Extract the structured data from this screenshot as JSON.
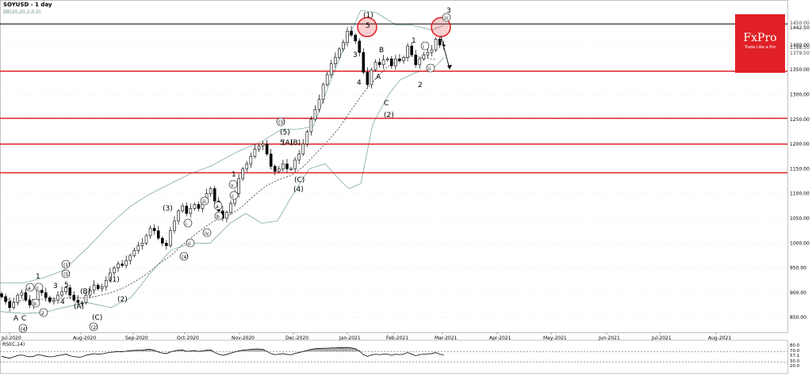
{
  "header": {
    "symbol": "SOYUSD - 1 day",
    "indicator": "BB(20,20,2,0,0)",
    "rsi_label": "RSI(C,14)"
  },
  "brand": {
    "name": "FxPro",
    "tagline": "Trade Like a Pro"
  },
  "colors": {
    "candle": "#000000",
    "resistance": "#e02025",
    "bands": "#7fa8a8",
    "mid": "#333333",
    "grid": "#dddddd"
  },
  "chart_data": [
    {
      "type": "candlestick",
      "ylim": [
        820,
        1478
      ],
      "y_ticks": [
        850,
        900,
        950,
        1000,
        1050,
        1100,
        1150,
        1200,
        1250,
        1300,
        1350,
        1400
      ],
      "y_tick_labels": [
        "850.00",
        "900.00",
        "950.00",
        "1000.00",
        "1050.00",
        "1100.00",
        "1150.00",
        "1200.00",
        "1250.00",
        "1300.00",
        "1350.00",
        "1400.00"
      ],
      "extra_price_labels": [
        "1450.00",
        "1442.50",
        "1398.50",
        "1379.50"
      ],
      "x_labels": [
        "Jul-2020",
        "Aug-2020",
        "Sep-2020",
        "Oct-2020",
        "Nov-2020",
        "Dec-2020",
        "Jan-2021",
        "Feb-2021",
        "Mar-2021",
        "Apr-2021",
        "May-2021",
        "Jun-2021",
        "Jul-2021",
        "Aug-2021"
      ],
      "closes": [
        892,
        882,
        870,
        880,
        895,
        900,
        885,
        875,
        880,
        905,
        900,
        890,
        882,
        885,
        895,
        902,
        910,
        895,
        885,
        880,
        880,
        895,
        905,
        915,
        908,
        912,
        925,
        940,
        950,
        958,
        955,
        965,
        975,
        985,
        995,
        1000,
        1015,
        1030,
        1025,
        1010,
        1000,
        995,
        1025,
        1045,
        1065,
        1075,
        1060,
        1070,
        1078,
        1070,
        1082,
        1100,
        1110,
        1085,
        1065,
        1050,
        1062,
        1080,
        1100,
        1130,
        1150,
        1160,
        1175,
        1190,
        1196,
        1200,
        1180,
        1155,
        1145,
        1150,
        1160,
        1150,
        1150,
        1168,
        1180,
        1200,
        1225,
        1250,
        1270,
        1290,
        1320,
        1340,
        1362,
        1375,
        1392,
        1405,
        1428,
        1420,
        1408,
        1385,
        1345,
        1320,
        1350,
        1365,
        1360,
        1370,
        1372,
        1358,
        1372,
        1368,
        1375,
        1398,
        1380,
        1360,
        1372,
        1380,
        1385,
        1390,
        1412,
        1400,
        1398
      ],
      "bb_upper": [
        [
          0,
          920
        ],
        [
          30,
          920
        ],
        [
          55,
          930
        ],
        [
          80,
          945
        ],
        [
          110,
          990
        ],
        [
          140,
          1040
        ],
        [
          165,
          1075
        ],
        [
          190,
          1100
        ],
        [
          215,
          1120
        ],
        [
          240,
          1140
        ],
        [
          265,
          1155
        ],
        [
          300,
          1185
        ],
        [
          330,
          1205
        ],
        [
          355,
          1230
        ],
        [
          375,
          1230
        ],
        [
          395,
          1235
        ],
        [
          415,
          1320
        ],
        [
          435,
          1400
        ],
        [
          455,
          1470
        ],
        [
          475,
          1465
        ],
        [
          500,
          1440
        ],
        [
          520,
          1440
        ],
        [
          545,
          1430
        ],
        [
          560,
          1440
        ]
      ],
      "bb_lower": [
        [
          0,
          862
        ],
        [
          30,
          858
        ],
        [
          55,
          860
        ],
        [
          80,
          870
        ],
        [
          110,
          880
        ],
        [
          140,
          870
        ],
        [
          165,
          890
        ],
        [
          190,
          940
        ],
        [
          215,
          985
        ],
        [
          240,
          1000
        ],
        [
          265,
          1000
        ],
        [
          290,
          1040
        ],
        [
          310,
          1060
        ],
        [
          330,
          1040
        ],
        [
          350,
          1045
        ],
        [
          370,
          1100
        ],
        [
          390,
          1150
        ],
        [
          410,
          1160
        ],
        [
          430,
          1125
        ],
        [
          440,
          1110
        ],
        [
          455,
          1120
        ],
        [
          470,
          1240
        ],
        [
          490,
          1300
        ],
        [
          505,
          1330
        ],
        [
          525,
          1345
        ],
        [
          545,
          1350
        ],
        [
          560,
          1375
        ]
      ],
      "resistance_levels": [
        1442.5,
        1347,
        1252,
        1200,
        1142
      ],
      "annotations": [
        "(1)",
        "5",
        "3",
        "4",
        "B",
        "A",
        "C",
        "(2)",
        "1",
        "2",
        "3",
        "iii",
        "i",
        "ii",
        "(3)",
        "(5)",
        "5",
        "(A)",
        "(B)",
        "(C)",
        "(4)",
        "1",
        "v",
        "c",
        "a",
        "b",
        "iii",
        "iv",
        "ii",
        "i",
        "(4)",
        "(3)",
        "(1)",
        "(2)",
        "(B)",
        "(A)",
        "(C)",
        "(5)",
        "(1)",
        "1",
        "2",
        "3",
        "4",
        "5",
        "a",
        "c",
        "b",
        "A",
        "C",
        "(2)",
        "(4)"
      ]
    },
    {
      "type": "line",
      "name": "RSI(C,14)",
      "ylim": [
        0,
        100
      ],
      "y_tick_labels": [
        "80.0",
        "70.0",
        "57.1",
        "30.0",
        "20.0"
      ],
      "levels": [
        70,
        30
      ],
      "values": [
        52,
        48,
        45,
        50,
        55,
        57,
        53,
        50,
        52,
        58,
        56,
        52,
        50,
        51,
        55,
        57,
        60,
        54,
        51,
        49,
        50,
        56,
        59,
        62,
        60,
        61,
        64,
        67,
        68,
        70,
        69,
        71,
        73,
        74,
        75,
        75,
        77,
        78,
        74,
        68,
        64,
        62,
        68,
        72,
        75,
        76,
        70,
        72,
        73,
        70,
        72,
        75,
        76,
        66,
        60,
        56,
        59,
        64,
        68,
        72,
        75,
        76,
        78,
        79,
        79,
        78,
        70,
        62,
        58,
        60,
        62,
        59,
        58,
        63,
        66,
        70,
        74,
        78,
        80,
        81,
        82,
        82,
        83,
        83,
        84,
        84,
        85,
        83,
        80,
        72,
        58,
        52,
        57,
        60,
        58,
        60,
        60,
        56,
        60,
        58,
        60,
        66,
        60,
        54,
        58,
        60,
        61,
        62,
        66,
        60,
        57
      ]
    }
  ]
}
